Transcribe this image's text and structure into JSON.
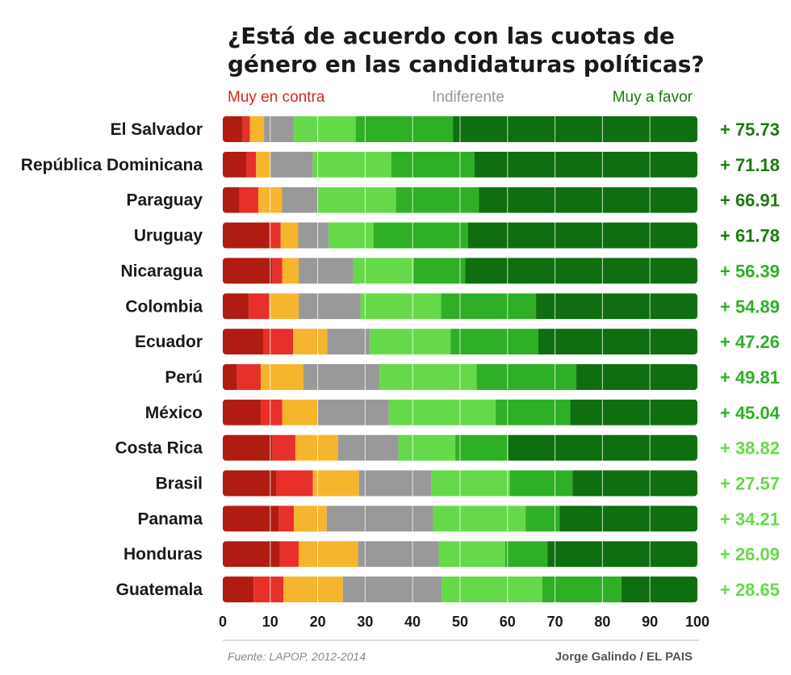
{
  "chart_data": {
    "type": "bar",
    "stacked": true,
    "orientation": "horizontal",
    "title_lines": [
      "¿Está de acuerdo con las cuotas de",
      "género en las candidaturas políticas?"
    ],
    "legend": {
      "left": "Muy en contra",
      "middle": "Indiferente",
      "right": "Muy a favor",
      "left_color": "#d7261e",
      "middle_color": "#999999",
      "right_color": "#1e7a10"
    },
    "categories": [
      "El Salvador",
      "República Dominicana",
      "Paraguay",
      "Uruguay",
      "Nicaragua",
      "Colombia",
      "Ecuador",
      "Perú",
      "México",
      "Costa Rica",
      "Brasil",
      "Panama",
      "Honduras",
      "Guatemala"
    ],
    "series": [
      {
        "color": "#b01c12",
        "values": [
          4.2,
          5.0,
          3.5,
          9.8,
          10.5,
          5.5,
          8.5,
          3.0,
          8.0,
          10.5,
          11.3,
          11.8,
          12.0,
          6.5
        ]
      },
      {
        "color": "#e8302a",
        "values": [
          1.5,
          2.0,
          4.0,
          2.4,
          2.0,
          4.3,
          6.3,
          5.0,
          4.5,
          4.8,
          7.7,
          3.2,
          4.0,
          6.3
        ]
      },
      {
        "color": "#f5b52e",
        "values": [
          3.0,
          3.0,
          5.0,
          3.7,
          3.5,
          6.2,
          7.2,
          9.0,
          7.5,
          9.0,
          9.7,
          6.9,
          12.5,
          12.5
        ]
      },
      {
        "color": "#999999",
        "values": [
          6.3,
          9.0,
          7.5,
          6.4,
          11.5,
          13.0,
          9.0,
          16.0,
          15.0,
          12.7,
          15.3,
          22.4,
          17.0,
          20.8
        ]
      },
      {
        "color": "#66d94a",
        "values": [
          13.0,
          16.5,
          16.5,
          9.5,
          12.7,
          17.0,
          17.0,
          20.5,
          22.5,
          12.0,
          16.5,
          19.5,
          14.0,
          21.2
        ]
      },
      {
        "color": "#2faf26",
        "values": [
          20.5,
          17.5,
          17.5,
          19.9,
          10.9,
          20.0,
          18.5,
          21.0,
          15.7,
          11.2,
          13.2,
          7.2,
          8.9,
          16.7
        ]
      },
      {
        "color": "#0f6e10",
        "values": [
          51.5,
          47.0,
          46.0,
          48.3,
          48.9,
          34.0,
          33.5,
          25.5,
          26.8,
          39.8,
          26.3,
          29.0,
          31.6,
          16.0
        ]
      }
    ],
    "net_values": [
      "+ 75.73",
      "+ 71.18",
      "+ 66.91",
      "+ 61.78",
      "+ 56.39",
      "+ 54.89",
      "+ 47.26",
      "+ 49.81",
      "+ 45.04",
      "+ 38.82",
      "+ 27.57",
      "+ 34.21",
      "+ 26.09",
      "+ 28.65"
    ],
    "net_colors": [
      "#1e7a10",
      "#1e7a10",
      "#1e7a10",
      "#1e7a10",
      "#2faf26",
      "#2faf26",
      "#2faf26",
      "#2faf26",
      "#2faf26",
      "#66d94a",
      "#66d94a",
      "#66d94a",
      "#66d94a",
      "#66d94a"
    ],
    "xlim": [
      0,
      100
    ],
    "xticks": [
      0,
      10,
      20,
      30,
      40,
      50,
      60,
      70,
      80,
      90,
      100
    ],
    "grid": true,
    "source": "Fuente: LAPOP, 2012-2014",
    "credit": "Jorge Galindo / EL PAIS"
  }
}
